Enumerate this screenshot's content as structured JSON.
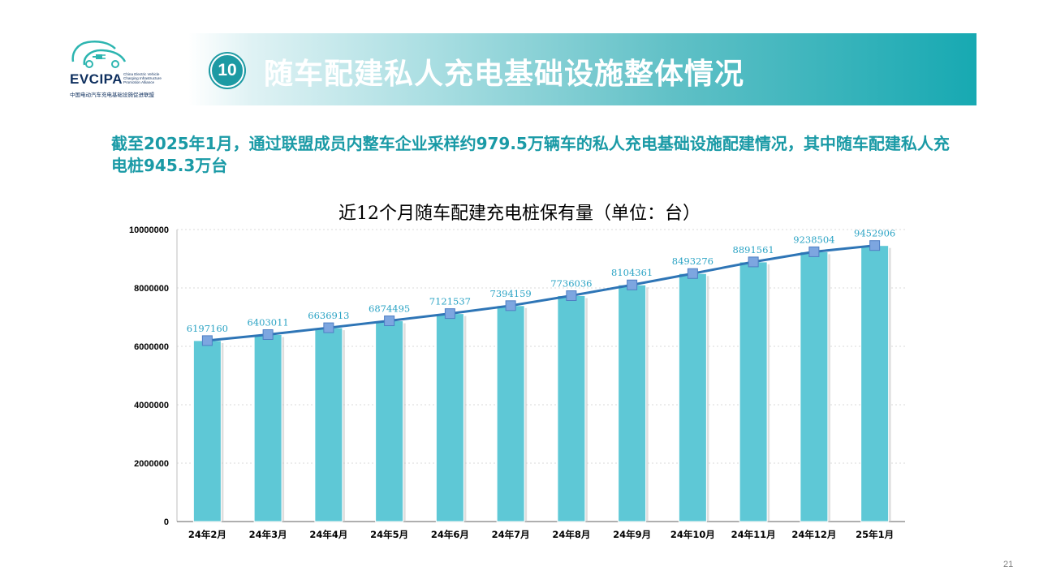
{
  "header": {
    "logo_text": "EVCIPA",
    "logo_en": "China Electric Vehicle Charging Infrastructure Promotion Alliance",
    "logo_cn": "中国电动汽车充电基础设施促进联盟",
    "section_number": "10",
    "title": "随车配建私人充电基础设施整体情况"
  },
  "summary": "截至2025年1月，通过联盟成员内整车企业采样约979.5万辆车的私人充电基础设施配建情况，其中随车配建私人充电桩945.3万台",
  "page_number": "21",
  "colors": {
    "bar": "#5ec8d6",
    "line": "#2e75b6",
    "marker": "#7da6e0",
    "label": "#2aa3c4",
    "accent": "#1a9aa6"
  },
  "chart_data": {
    "type": "bar",
    "title": "近12个月随车配建充电桩保有量（单位：台）",
    "categories": [
      "24年2月",
      "24年3月",
      "24年4月",
      "24年5月",
      "24年6月",
      "24年7月",
      "24年8月",
      "24年9月",
      "24年10月",
      "24年11月",
      "24年12月",
      "25年1月"
    ],
    "values": [
      6197160,
      6403011,
      6636913,
      6874495,
      7121537,
      7394159,
      7736036,
      8104361,
      8493276,
      8891561,
      9238504,
      9452906
    ],
    "overlay_line": true,
    "ylim": [
      0,
      10000000
    ],
    "yticks": [
      0,
      2000000,
      4000000,
      6000000,
      8000000,
      10000000
    ],
    "ytick_labels": [
      "0",
      "2000000",
      "4000000",
      "6000000",
      "8000000",
      "10000000"
    ],
    "grid": true,
    "xlabel": "",
    "ylabel": ""
  }
}
